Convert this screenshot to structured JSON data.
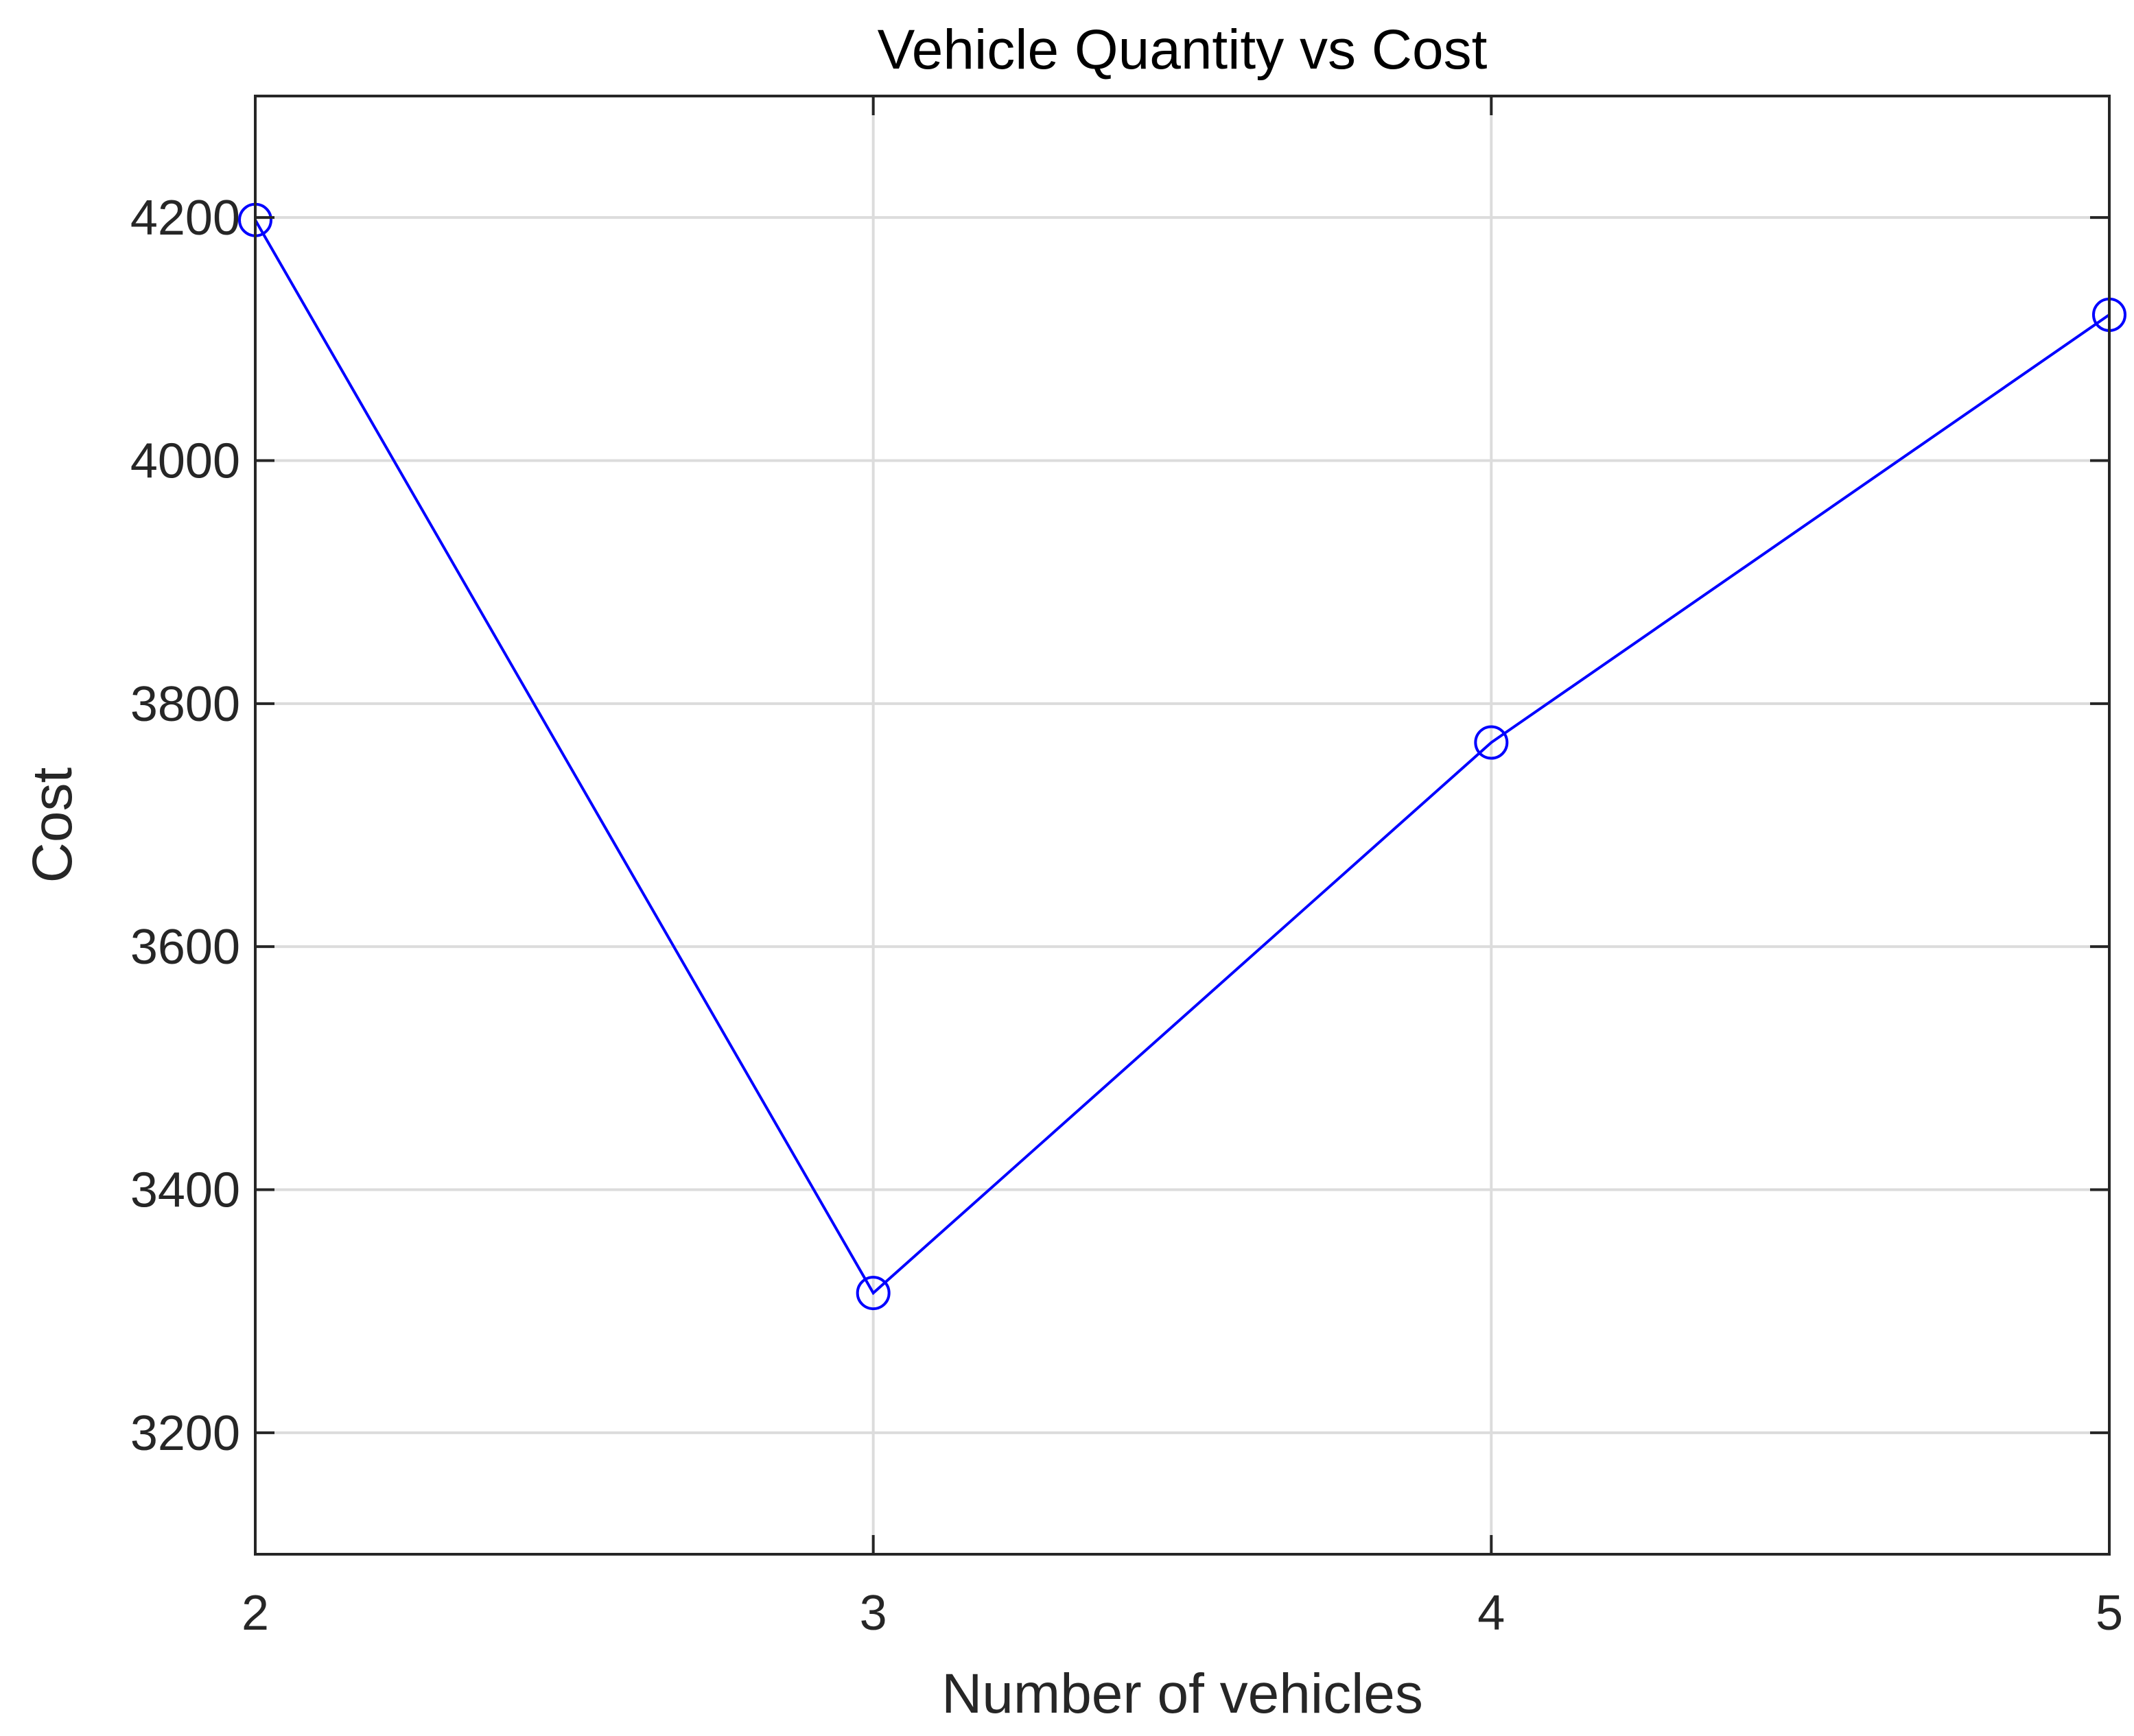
{
  "chart_data": {
    "type": "line",
    "title": "Vehicle Quantity vs Cost",
    "xlabel": "Number of vehicles",
    "ylabel": "Cost",
    "x": [
      2,
      3,
      4,
      5
    ],
    "xlim": [
      2,
      5
    ],
    "ylim": [
      3100,
      4300
    ],
    "xticks": [
      "2",
      "3",
      "4",
      "5"
    ],
    "xtick_values": [
      2,
      3,
      4,
      5
    ],
    "yticks": [
      "3200",
      "3400",
      "3600",
      "3800",
      "4000",
      "4200"
    ],
    "ytick_values": [
      3200,
      3400,
      3600,
      3800,
      4000,
      4200
    ],
    "grid": true,
    "series": [
      {
        "values": [
          4198,
          3315,
          3768,
          4120
        ],
        "color": "#0000ff",
        "marker": "circle"
      }
    ]
  }
}
